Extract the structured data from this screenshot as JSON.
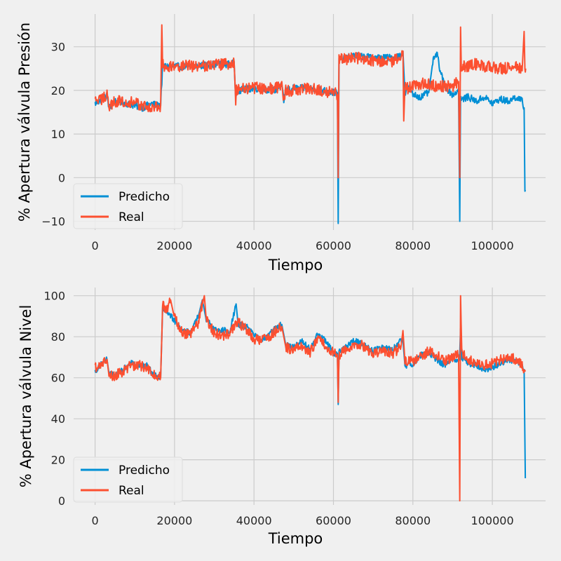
{
  "colors": {
    "background": "#f0f0f0",
    "grid": "#cbcbcb",
    "predicho": "#008fd5",
    "real": "#fc4f30"
  },
  "chart_data": [
    {
      "type": "line",
      "xlabel": "Tiempo",
      "ylabel": "% Apertura válvula Presión",
      "xlim": [
        -5400,
        113400
      ],
      "ylim": [
        -12,
        37.5
      ],
      "xticks": [
        0,
        20000,
        40000,
        60000,
        80000,
        100000
      ],
      "yticks": [
        -10,
        0,
        10,
        20,
        30
      ],
      "grid": true,
      "legend": "bottom-left",
      "series": [
        {
          "name": "Predicho",
          "color_key": "predicho",
          "x": [
            0,
            2000,
            3000,
            3500,
            5000,
            8000,
            10000,
            12000,
            14000,
            16000,
            16500,
            16800,
            17000,
            17200,
            20000,
            25000,
            30000,
            34000,
            35000,
            35400,
            35600,
            35800,
            36000,
            40000,
            45000,
            47000,
            47500,
            48000,
            50000,
            55000,
            60000,
            61000,
            61200,
            61400,
            61600,
            62000,
            65000,
            70000,
            75000,
            77000,
            77500,
            78000,
            78500,
            80000,
            82000,
            84000,
            85000,
            86000,
            87000,
            88000,
            90000,
            91500,
            91800,
            92000,
            92200,
            92500,
            94000,
            96000,
            98000,
            100000,
            102000,
            104000,
            106000,
            107500,
            108000,
            108200,
            108400
          ],
          "y": [
            17,
            18,
            19,
            16,
            17.5,
            17,
            16.5,
            16,
            17,
            16.5,
            17,
            22,
            26,
            25.5,
            25.5,
            25.5,
            26,
            26,
            26.5,
            17.5,
            20,
            20,
            20,
            20.5,
            20,
            21,
            17.5,
            20,
            20.5,
            20.5,
            19.5,
            19.5,
            -10.5,
            27,
            27.5,
            27,
            28,
            27.5,
            27.5,
            28,
            29,
            19,
            21,
            19,
            18.5,
            19.5,
            26.5,
            28.5,
            24,
            21,
            19,
            20,
            -10,
            19,
            17.5,
            18,
            18.5,
            17.5,
            18.5,
            17,
            18,
            17.5,
            18.5,
            17.5,
            16,
            -3.5,
            -3
          ],
          "band": 0.8
        },
        {
          "name": "Real",
          "color_key": "real",
          "x": [
            0,
            2000,
            3000,
            3500,
            5000,
            8000,
            10000,
            12000,
            14000,
            16000,
            16500,
            16800,
            17000,
            17200,
            20000,
            25000,
            30000,
            34000,
            35000,
            35400,
            35600,
            35800,
            36000,
            40000,
            45000,
            47000,
            47500,
            48000,
            50000,
            55000,
            60000,
            61000,
            61200,
            61400,
            61600,
            62000,
            65000,
            70000,
            75000,
            77000,
            77500,
            77700,
            78000,
            78500,
            80000,
            82000,
            84000,
            86000,
            88000,
            90000,
            91500,
            91800,
            92000,
            92200,
            92500,
            94000,
            96000,
            98000,
            100000,
            102000,
            104000,
            106000,
            107500,
            108000,
            108200,
            108400
          ],
          "y": [
            17.5,
            18,
            19.5,
            16,
            17.5,
            17.5,
            17,
            16.5,
            16,
            16,
            16.5,
            35,
            26,
            25.5,
            25.5,
            25.5,
            26,
            26,
            26.5,
            17.5,
            20,
            20,
            20.5,
            20.5,
            20.5,
            21,
            18,
            20,
            20,
            20.5,
            19.5,
            19,
            0,
            27,
            27.5,
            27,
            27.5,
            27,
            26.5,
            28,
            29,
            13,
            21,
            20.5,
            21,
            21.5,
            21.5,
            21,
            21,
            21,
            22,
            0,
            34.5,
            24,
            25.5,
            25.5,
            26,
            25.5,
            25.5,
            25,
            25,
            25.5,
            24.5,
            33.5,
            25,
            25
          ],
          "band": 1.4
        }
      ]
    },
    {
      "type": "line",
      "xlabel": "Tiempo",
      "ylabel": "% Apertura válvula Nivel",
      "xlim": [
        -5400,
        113400
      ],
      "ylim": [
        -2,
        104
      ],
      "xticks": [
        0,
        20000,
        40000,
        60000,
        80000,
        100000
      ],
      "yticks": [
        0,
        20,
        40,
        60,
        80,
        100
      ],
      "grid": true,
      "legend": "bottom-left",
      "series": [
        {
          "name": "Predicho",
          "color_key": "predicho",
          "x": [
            0,
            1500,
            3000,
            3500,
            5000,
            7000,
            9000,
            11000,
            13000,
            15000,
            16500,
            16800,
            17000,
            18000,
            20000,
            22000,
            24000,
            26000,
            27000,
            28000,
            30000,
            32000,
            34000,
            35500,
            36000,
            38000,
            40000,
            42000,
            44000,
            46000,
            47000,
            48000,
            50000,
            52000,
            54000,
            56000,
            58000,
            60000,
            61000,
            61200,
            61400,
            62000,
            65000,
            67000,
            70000,
            72000,
            75000,
            77000,
            77500,
            78000,
            80000,
            82000,
            84000,
            86000,
            88000,
            90000,
            91500,
            91800,
            92000,
            92300,
            94000,
            96000,
            98000,
            100000,
            102000,
            104000,
            106000,
            107500,
            108000,
            108300
          ],
          "y": [
            63,
            67,
            69,
            62,
            61,
            64,
            67,
            66,
            66,
            61,
            60,
            80,
            94,
            93,
            88,
            83,
            82,
            90,
            98,
            88,
            84,
            83,
            83,
            96,
            86,
            85,
            81,
            78,
            82,
            85,
            86,
            76,
            75,
            78,
            74,
            81,
            78,
            72,
            72,
            47,
            73,
            73,
            78,
            77,
            73,
            75,
            74,
            78,
            78,
            66,
            67,
            71,
            72,
            69,
            66,
            69,
            69,
            72,
            84,
            70,
            67,
            66,
            64,
            65,
            67,
            69,
            68,
            66,
            64,
            11
          ],
          "band": 1.5
        },
        {
          "name": "Real",
          "color_key": "real",
          "x": [
            0,
            1500,
            3000,
            3500,
            5000,
            7000,
            9000,
            11000,
            13000,
            15000,
            16500,
            16800,
            17000,
            18000,
            19000,
            20000,
            22000,
            24000,
            26000,
            27500,
            28000,
            30000,
            32000,
            34000,
            36000,
            38000,
            40000,
            42000,
            44000,
            46000,
            47000,
            48000,
            50000,
            52000,
            54000,
            56000,
            58000,
            60000,
            61000,
            61200,
            61400,
            62000,
            65000,
            67000,
            70000,
            72000,
            75000,
            77000,
            77500,
            78000,
            80000,
            82000,
            84000,
            86000,
            88000,
            90000,
            91500,
            91800,
            92000,
            92300,
            94000,
            96000,
            98000,
            100000,
            102000,
            104000,
            106000,
            107500,
            108000,
            108300
          ],
          "y": [
            65,
            67,
            69,
            61,
            61,
            63,
            66,
            66,
            65,
            61,
            60,
            80,
            96,
            93,
            98,
            89,
            82,
            81,
            87,
            100,
            88,
            82,
            80,
            82,
            87,
            84,
            79,
            78,
            80,
            84,
            85,
            75,
            73,
            76,
            72,
            79,
            76,
            72,
            71,
            48,
            71,
            72,
            76,
            76,
            72,
            73,
            72,
            75,
            83,
            68,
            68,
            70,
            73,
            71,
            68,
            70,
            71,
            0,
            100,
            72,
            69,
            67,
            66,
            67,
            69,
            70,
            69,
            66,
            64,
            63
          ],
          "band": 2.5
        }
      ]
    }
  ]
}
